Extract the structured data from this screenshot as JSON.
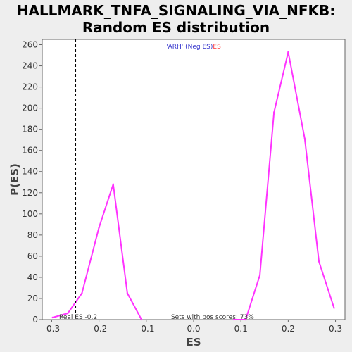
{
  "chart_data": {
    "type": "line",
    "title": [
      "HALLMARK_TNFA_SIGNALING_VIA_NFKB:",
      "Random ES distribution"
    ],
    "xlabel": "ES",
    "ylabel": "P(ES)",
    "xlim": [
      -0.32,
      0.32
    ],
    "ylim": [
      0,
      265
    ],
    "xticks": [
      -0.3,
      -0.2,
      -0.1,
      0.0,
      0.1,
      0.2,
      0.3
    ],
    "xtick_labels": [
      "-0.3",
      "-0.2",
      "-0.1",
      "0.0",
      "0.1",
      "0.2",
      "0.3"
    ],
    "yticks": [
      0,
      20,
      40,
      60,
      80,
      100,
      120,
      140,
      160,
      180,
      200,
      220,
      240,
      260
    ],
    "grid": false,
    "series": [
      {
        "color": "#ff33ff",
        "segments": [
          [
            [
              -0.298,
              2
            ],
            [
              -0.266,
              6
            ],
            [
              -0.236,
              25
            ],
            [
              -0.2,
              87
            ],
            [
              -0.17,
              128
            ],
            [
              -0.14,
              25
            ],
            [
              -0.11,
              0
            ]
          ],
          [
            [
              0.085,
              0
            ],
            [
              0.11,
              0
            ],
            [
              0.14,
              42
            ],
            [
              0.17,
              196
            ],
            [
              0.2,
              253
            ],
            [
              0.235,
              171
            ],
            [
              0.265,
              55
            ],
            [
              0.297,
              11
            ]
          ]
        ]
      }
    ],
    "real_es": {
      "value": -0.25,
      "color": "#000000",
      "label": "Real ES -0.2"
    },
    "legend": {
      "position": "top-center",
      "parts": [
        {
          "text": "'ARH' (Neg ES)",
          "color": "#3333cc"
        },
        {
          "text": "ES",
          "color": "#ff3333"
        }
      ]
    },
    "annotations": {
      "pos_scores": "Sets with pos scores: 73%"
    }
  }
}
